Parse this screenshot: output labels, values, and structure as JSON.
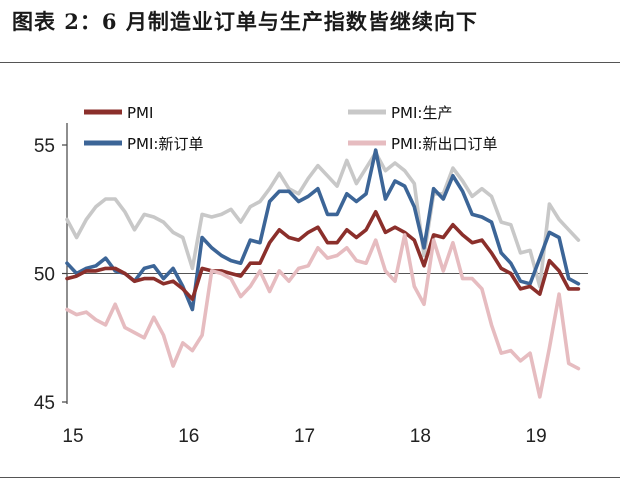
{
  "header": {
    "title": "图表 2：6 月制造业订单与生产指数皆继续向下"
  },
  "chart_data": {
    "type": "line",
    "title": "",
    "xlabel": "",
    "ylabel": "",
    "xlim": [
      2015.0,
      2019.5
    ],
    "ylim": [
      45,
      55
    ],
    "yticks": [
      45,
      50,
      55
    ],
    "xticks": [
      {
        "value": 2015,
        "label": "15"
      },
      {
        "value": 2016,
        "label": "16"
      },
      {
        "value": 2017,
        "label": "17"
      },
      {
        "value": 2018,
        "label": "18"
      },
      {
        "value": 2019,
        "label": "19"
      }
    ],
    "reference_line": 50,
    "legend_position": "top",
    "x": [
      "2015-01",
      "2015-02",
      "2015-03",
      "2015-04",
      "2015-05",
      "2015-06",
      "2015-07",
      "2015-08",
      "2015-09",
      "2015-10",
      "2015-11",
      "2015-12",
      "2016-01",
      "2016-02",
      "2016-03",
      "2016-04",
      "2016-05",
      "2016-06",
      "2016-07",
      "2016-08",
      "2016-09",
      "2016-10",
      "2016-11",
      "2016-12",
      "2017-01",
      "2017-02",
      "2017-03",
      "2017-04",
      "2017-05",
      "2017-06",
      "2017-07",
      "2017-08",
      "2017-09",
      "2017-10",
      "2017-11",
      "2017-12",
      "2018-01",
      "2018-02",
      "2018-03",
      "2018-04",
      "2018-05",
      "2018-06",
      "2018-07",
      "2018-08",
      "2018-09",
      "2018-10",
      "2018-11",
      "2018-12",
      "2019-01",
      "2019-02",
      "2019-03",
      "2019-04",
      "2019-05",
      "2019-06"
    ],
    "series": [
      {
        "name": "PMI:生产",
        "color": "#c8c8c8",
        "values": [
          52.1,
          51.4,
          52.1,
          52.6,
          52.9,
          52.9,
          52.4,
          51.7,
          52.3,
          52.2,
          52.0,
          51.6,
          51.4,
          50.2,
          52.3,
          52.2,
          52.3,
          52.5,
          52.0,
          52.6,
          52.8,
          53.3,
          53.9,
          53.3,
          53.1,
          53.7,
          54.2,
          53.8,
          53.4,
          54.4,
          53.5,
          54.1,
          54.7,
          54.0,
          54.3,
          54.0,
          53.5,
          50.7,
          53.1,
          53.1,
          54.1,
          53.6,
          53.0,
          53.3,
          53.0,
          52.0,
          51.9,
          50.8,
          50.9,
          49.5,
          52.7,
          52.1,
          51.7,
          51.3
        ]
      },
      {
        "name": "PMI:新订单",
        "color": "#3c6597",
        "values": [
          50.4,
          50.0,
          50.2,
          50.3,
          50.6,
          50.1,
          50.0,
          49.7,
          50.2,
          50.3,
          49.8,
          50.2,
          49.5,
          48.6,
          51.4,
          51.0,
          50.7,
          50.5,
          50.4,
          51.3,
          51.2,
          52.8,
          53.2,
          53.2,
          52.8,
          53.0,
          53.3,
          52.3,
          52.3,
          53.1,
          52.8,
          53.1,
          54.8,
          52.9,
          53.6,
          53.4,
          52.6,
          51.0,
          53.3,
          52.9,
          53.8,
          53.2,
          52.3,
          52.2,
          52.0,
          50.8,
          50.4,
          49.7,
          49.6,
          50.6,
          51.6,
          51.4,
          49.8,
          49.6
        ]
      },
      {
        "name": "PMI",
        "color": "#8b2f2b",
        "values": [
          49.8,
          49.9,
          50.1,
          50.1,
          50.2,
          50.2,
          50.0,
          49.7,
          49.8,
          49.8,
          49.6,
          49.7,
          49.4,
          49.0,
          50.2,
          50.1,
          50.1,
          50.0,
          49.9,
          50.4,
          50.4,
          51.2,
          51.7,
          51.4,
          51.3,
          51.6,
          51.8,
          51.2,
          51.2,
          51.7,
          51.4,
          51.7,
          52.4,
          51.6,
          51.8,
          51.6,
          51.3,
          50.3,
          51.5,
          51.4,
          51.9,
          51.5,
          51.2,
          51.3,
          50.8,
          50.2,
          50.0,
          49.4,
          49.5,
          49.2,
          50.5,
          50.1,
          49.4,
          49.4
        ]
      },
      {
        "name": "PMI:新出口订单",
        "color": "#e6bcc0",
        "values": [
          48.6,
          48.4,
          48.5,
          48.2,
          48.0,
          48.8,
          47.9,
          47.7,
          47.5,
          48.3,
          47.6,
          46.4,
          47.3,
          47.0,
          47.6,
          50.1,
          50.0,
          49.8,
          49.1,
          49.5,
          50.1,
          49.3,
          50.1,
          49.7,
          50.2,
          50.3,
          51.0,
          50.6,
          50.7,
          51.0,
          50.5,
          50.4,
          51.3,
          50.1,
          49.7,
          51.5,
          49.5,
          48.8,
          51.3,
          50.1,
          51.2,
          49.8,
          49.8,
          49.4,
          48.0,
          46.9,
          47.0,
          46.6,
          46.9,
          45.2,
          47.1,
          49.2,
          46.5,
          46.3
        ]
      }
    ],
    "legend": [
      {
        "label": "PMI",
        "color": "#8b2f2b"
      },
      {
        "label": "PMI:生产",
        "color": "#c8c8c8"
      },
      {
        "label": "PMI:新订单",
        "color": "#3c6597"
      },
      {
        "label": "PMI:新出口订单",
        "color": "#e6bcc0"
      }
    ]
  }
}
